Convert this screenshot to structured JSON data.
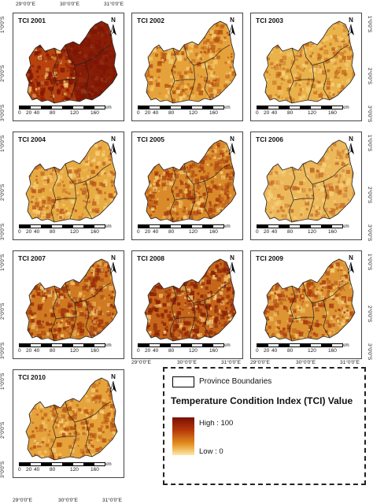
{
  "figure": {
    "top_lon_labels": [
      "29°0'0\"E",
      "30°0'0\"E",
      "31°0'0\"E"
    ],
    "bottom_lon_labels": [
      "29°0'0\"E",
      "30°0'0\"E",
      "31°0'0\"E"
    ],
    "lat_labels_left": [
      "1°0'0\"S",
      "2°0'0\"S",
      "3°0'0\"S"
    ],
    "lat_labels_right": [
      "1°0'0\"S",
      "2°0'0\"S",
      "3°0'0\"S"
    ]
  },
  "scale": {
    "ticks": [
      "0",
      "20",
      "40",
      "80",
      "120",
      "160"
    ],
    "unit": "km"
  },
  "north_label": "N",
  "panels": [
    {
      "title": "TCI 2001",
      "color": "#b8420d",
      "texture": "#7d1505",
      "intensity": 0.85
    },
    {
      "title": "TCI 2002",
      "color": "#e6a23a",
      "texture": "#b4500f",
      "intensity": 0.35
    },
    {
      "title": "TCI 2003",
      "color": "#eab24a",
      "texture": "#c0621a",
      "intensity": 0.3
    },
    {
      "title": "TCI 2004",
      "color": "#e8ab42",
      "texture": "#b9551a",
      "intensity": 0.3
    },
    {
      "title": "TCI 2005",
      "color": "#d98a2a",
      "texture": "#a53a0c",
      "intensity": 0.55
    },
    {
      "title": "TCI 2006",
      "color": "#ecb85a",
      "texture": "#c46a22",
      "intensity": 0.25
    },
    {
      "title": "TCI 2007",
      "color": "#cf7a22",
      "texture": "#962a07",
      "intensity": 0.6
    },
    {
      "title": "TCI 2008",
      "color": "#c5661b",
      "texture": "#861d05",
      "intensity": 0.7
    },
    {
      "title": "TCI 2009",
      "color": "#dd9534",
      "texture": "#a83a0c",
      "intensity": 0.5
    },
    {
      "title": "TCI 2010",
      "color": "#e6a33c",
      "texture": "#b4500f",
      "intensity": 0.35
    }
  ],
  "legend": {
    "province_label": "Province Boundaries",
    "title": "Temperature Condition Index (TCI) Value",
    "high_label": "High : 100",
    "low_label": "Low : 0",
    "ramp_colors": [
      "#7a0f05",
      "#b83a0b",
      "#e3901f",
      "#fde9a6"
    ]
  }
}
